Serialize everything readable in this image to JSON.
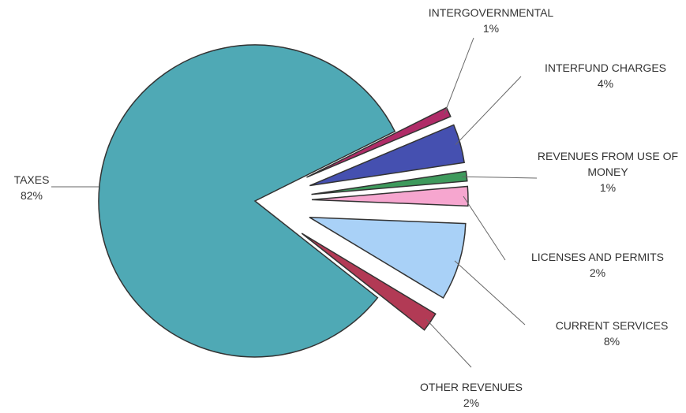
{
  "chart_data": {
    "type": "pie",
    "categories": [
      "TAXES",
      "INTERGOVERNMENTAL",
      "INTERFUND CHARGES",
      "REVENUES FROM USE OF MONEY",
      "LICENSES AND PERMITS",
      "CURRENT SERVICES",
      "OTHER REVENUES"
    ],
    "values": [
      82,
      1,
      4,
      1,
      2,
      8,
      2
    ],
    "value_labels": [
      "82%",
      "1%",
      "4%",
      "1%",
      "2%",
      "8%",
      "2%"
    ],
    "colors": [
      "#4fa9b5",
      "#b02c68",
      "#4550b0",
      "#3e9a5c",
      "#f6a6cf",
      "#a9d1f7",
      "#b23a55"
    ]
  }
}
